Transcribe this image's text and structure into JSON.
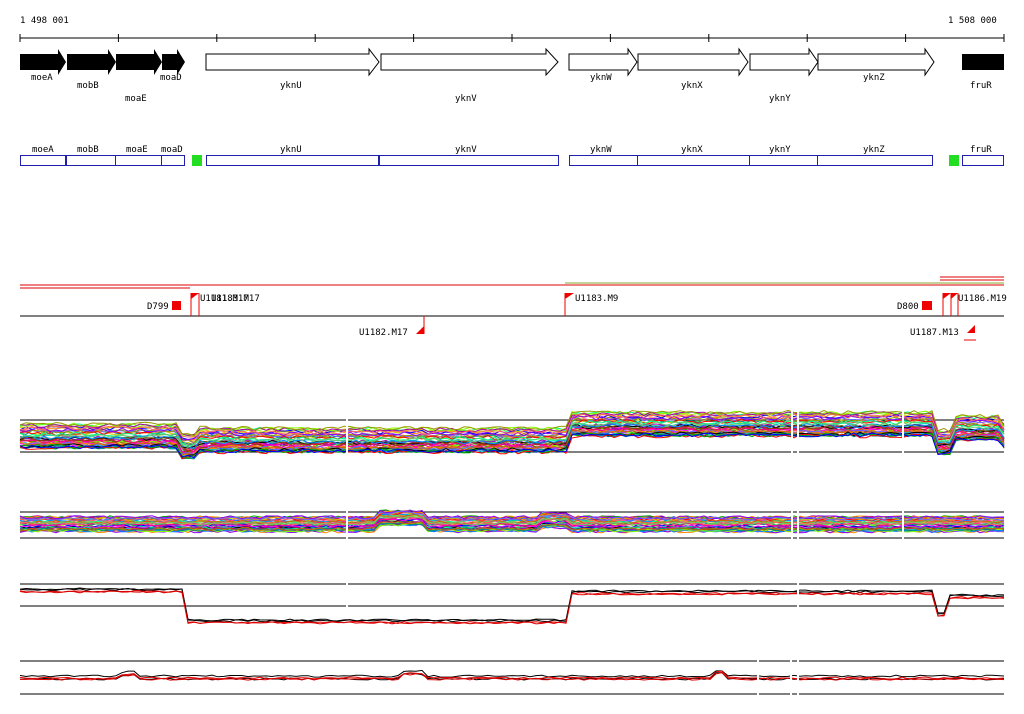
{
  "ruler": {
    "start_label": "1 498 001",
    "end_label": "1 508 000"
  },
  "genes": [
    {
      "name": "moeA",
      "strand": "fwd",
      "style": "filled"
    },
    {
      "name": "mobB",
      "strand": "fwd",
      "style": "filled"
    },
    {
      "name": "moaE",
      "strand": "fwd",
      "style": "filled"
    },
    {
      "name": "moaD",
      "strand": "fwd",
      "style": "filled"
    },
    {
      "name": "yknU",
      "strand": "fwd",
      "style": "open"
    },
    {
      "name": "yknV",
      "strand": "fwd",
      "style": "open"
    },
    {
      "name": "yknW",
      "strand": "fwd",
      "style": "open"
    },
    {
      "name": "yknX",
      "strand": "fwd",
      "style": "open"
    },
    {
      "name": "yknY",
      "strand": "fwd",
      "style": "open"
    },
    {
      "name": "yknZ",
      "strand": "fwd",
      "style": "open"
    },
    {
      "name": "fruR",
      "strand": "fwd",
      "style": "filled"
    }
  ],
  "annotation_boxes": [
    "moeA",
    "mobB",
    "moaE",
    "moaD",
    "yknU",
    "yknV",
    "yknW",
    "yknX",
    "yknY",
    "yknZ",
    "fruR"
  ],
  "markers": [
    {
      "label": "D799",
      "row": "upper"
    },
    {
      "label": "U1181.M17",
      "row": "upper"
    },
    {
      "label": "U1183.M9",
      "row": "upper"
    },
    {
      "label": "D800",
      "row": "upper"
    },
    {
      "label": "U1186.M19",
      "row": "upper"
    },
    {
      "label": "U1182.M17",
      "row": "lower"
    },
    {
      "label": "U1187.M13",
      "row": "lower"
    }
  ],
  "colors": {
    "filled_gene": "#000000",
    "box_outline": "#2020b0",
    "green_marker": "#22dd22",
    "red_marker": "#ee0000",
    "red_line": "#dd0000",
    "olive_line": "#88aa33"
  }
}
